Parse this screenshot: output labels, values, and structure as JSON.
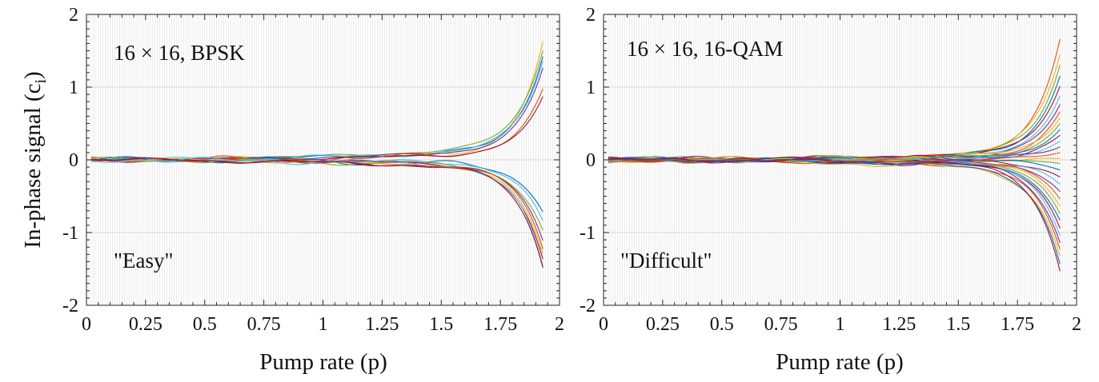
{
  "figure": {
    "ylabel_main": "In-phase signal (c",
    "ylabel_sub": "i",
    "ylabel_close": ")",
    "xlabel": "Pump rate (p)"
  },
  "chart_data": [
    {
      "type": "line",
      "panel": "left",
      "title": "16 × 16, BPSK",
      "annotation": "\"Easy\"",
      "xlabel": "Pump rate (p)",
      "ylabel": "In-phase signal (ci)",
      "xlim": [
        0,
        2
      ],
      "ylim": [
        -2,
        2
      ],
      "xticks": [
        "0",
        "0.25",
        "0.5",
        "0.75",
        "1",
        "1.25",
        "1.5",
        "1.75",
        "2"
      ],
      "yticks": [
        "-2",
        "-1",
        "0",
        "1",
        "2"
      ],
      "grid": true,
      "x_end": 1.93,
      "num_series": 16,
      "series_final_values": [
        1.62,
        1.52,
        1.43,
        1.37,
        1.28,
        0.98,
        0.88,
        -0.72,
        -0.84,
        -0.98,
        -1.12,
        -1.22,
        -1.3,
        -1.38,
        -1.46,
        -1.5
      ],
      "colors": [
        "#EDB120",
        "#77AC30",
        "#0072BD",
        "#4DBEEE",
        "#7E2F8E",
        "#D95319",
        "#A2142F",
        "#0072BD",
        "#4DBEEE",
        "#77AC30",
        "#7E2F8E",
        "#D95319",
        "#EDB120",
        "#A2142F",
        "#4DBEEE",
        "#A2142F"
      ]
    },
    {
      "type": "line",
      "panel": "right",
      "title": "16 × 16, 16-QAM",
      "annotation": "\"Difficult\"",
      "xlabel": "Pump rate (p)",
      "xlim": [
        0,
        2
      ],
      "ylim": [
        -2,
        2
      ],
      "xticks": [
        "0",
        "0.25",
        "0.5",
        "0.75",
        "1",
        "1.25",
        "1.5",
        "1.75",
        "2"
      ],
      "yticks": [
        "-2",
        "-1",
        "0",
        "1",
        "2"
      ],
      "grid": true,
      "x_end": 1.93,
      "num_series": 32,
      "series_final_values": [
        1.65,
        1.45,
        1.3,
        1.15,
        1.02,
        0.88,
        0.76,
        0.66,
        0.58,
        0.5,
        0.42,
        0.34,
        0.26,
        0.18,
        0.1,
        0.02,
        -0.05,
        -0.14,
        -0.24,
        -0.34,
        -0.44,
        -0.54,
        -0.64,
        -0.74,
        -0.84,
        -0.94,
        -1.04,
        -1.14,
        -1.24,
        -1.34,
        -1.44,
        -1.52
      ],
      "colors": [
        "#D95319",
        "#EDB120",
        "#77AC30",
        "#0072BD",
        "#A2142F",
        "#4DBEEE",
        "#7E2F8E",
        "#D95319",
        "#EDB120",
        "#77AC30",
        "#0072BD",
        "#A2142F",
        "#4DBEEE",
        "#7E2F8E",
        "#D95319",
        "#EDB120",
        "#77AC30",
        "#0072BD",
        "#A2142F",
        "#4DBEEE",
        "#7E2F8E",
        "#D95319",
        "#EDB120",
        "#77AC30",
        "#0072BD",
        "#A2142F",
        "#4DBEEE",
        "#7E2F8E",
        "#D95319",
        "#EDB120",
        "#0072BD",
        "#A2142F"
      ]
    }
  ]
}
